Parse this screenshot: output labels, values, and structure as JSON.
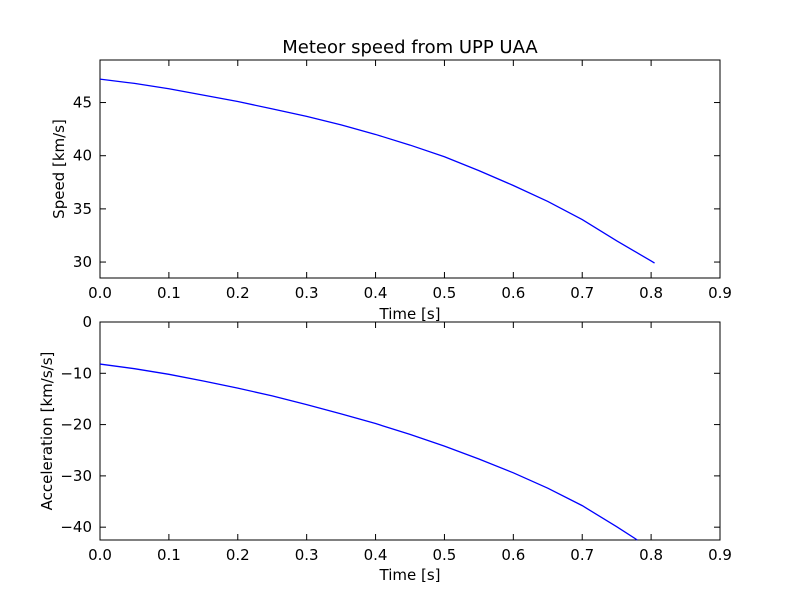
{
  "chart_data": [
    {
      "type": "line",
      "title": "Meteor speed from  UPP UAA",
      "xlabel": "Time [s]",
      "ylabel": "Speed [km/s]",
      "xlim": [
        0.0,
        0.9
      ],
      "ylim": [
        28.5,
        49.0
      ],
      "xticks": [
        "0.0",
        "0.1",
        "0.2",
        "0.3",
        "0.4",
        "0.5",
        "0.6",
        "0.7",
        "0.8",
        "0.9"
      ],
      "yticks": [
        "30",
        "35",
        "40",
        "45"
      ],
      "grid": false,
      "color": "#0000ff",
      "series": [
        {
          "x": [
            0.0,
            0.05,
            0.1,
            0.15,
            0.2,
            0.25,
            0.3,
            0.35,
            0.4,
            0.45,
            0.5,
            0.55,
            0.6,
            0.65,
            0.7,
            0.75,
            0.8,
            0.805
          ],
          "values": [
            47.2,
            46.8,
            46.3,
            45.7,
            45.1,
            44.4,
            43.7,
            42.9,
            42.0,
            41.0,
            39.9,
            38.6,
            37.2,
            35.7,
            34.0,
            32.0,
            30.1,
            29.9
          ]
        }
      ]
    },
    {
      "type": "line",
      "title": "",
      "xlabel": "Time [s]",
      "ylabel": "Acceleration [km/s/s]",
      "xlim": [
        0.0,
        0.9
      ],
      "ylim": [
        -42.5,
        0
      ],
      "xticks": [
        "0.0",
        "0.1",
        "0.2",
        "0.3",
        "0.4",
        "0.5",
        "0.6",
        "0.7",
        "0.8",
        "0.9"
      ],
      "yticks": [
        "0",
        "−10",
        "−20",
        "−30",
        "−40"
      ],
      "grid": false,
      "color": "#0000ff",
      "series": [
        {
          "x": [
            0.0,
            0.05,
            0.1,
            0.15,
            0.2,
            0.25,
            0.3,
            0.35,
            0.4,
            0.45,
            0.5,
            0.55,
            0.6,
            0.65,
            0.7,
            0.75,
            0.78
          ],
          "values": [
            -8.2,
            -9.1,
            -10.2,
            -11.5,
            -12.9,
            -14.4,
            -16.1,
            -17.9,
            -19.8,
            -21.9,
            -24.2,
            -26.7,
            -29.4,
            -32.4,
            -35.8,
            -39.9,
            -42.5
          ]
        }
      ]
    }
  ]
}
